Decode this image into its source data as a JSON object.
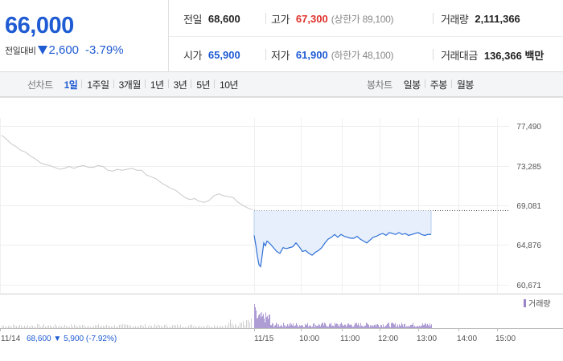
{
  "summary": {
    "price": "66,000",
    "change_label": "전일대비",
    "change_value": "2,600",
    "change_pct": "-3.79%",
    "prev_close_label": "전일",
    "prev_close": "68,600",
    "open_label": "시가",
    "open": "65,900",
    "high_label": "고가",
    "high": "67,300",
    "upper_limit": "(상한가 89,100)",
    "low_label": "저가",
    "low": "61,900",
    "lower_limit": "(하한가 48,100)",
    "volume_label": "거래량",
    "volume": "2,111,366",
    "amount_label": "거래대금",
    "amount": "136,366 백만"
  },
  "line_tabs": {
    "label": "선차트",
    "items": [
      "1일",
      "1주일",
      "3개월",
      "1년",
      "3년",
      "5년",
      "10년"
    ],
    "active": 0
  },
  "candle_tabs": {
    "label": "봉차트",
    "items": [
      "일봉",
      "주봉",
      "월봉"
    ]
  },
  "colors": {
    "accent": "#1f5bd3",
    "prev_day_line": "#c8c8c8",
    "today_line": "#2e6fd6",
    "fill": "#e6effb",
    "volume_prev": "#cfcfcf",
    "volume_today": "#9b83c9"
  },
  "chart_data": {
    "type": "line",
    "y_ticks": [
      "77,490",
      "73,285",
      "69,081",
      "64,876",
      "60,671"
    ],
    "ylim": [
      60671,
      77490
    ],
    "x_ticks": [
      "11/14",
      "11/15",
      "10:00",
      "11:00",
      "12:00",
      "13:00",
      "14:00",
      "15:00"
    ],
    "prev_day_ref": 68600,
    "legend": "거래량",
    "prev_day_info": {
      "date": "11/14",
      "close": "68,600",
      "change": "5,900",
      "pct": "(-7.92%)"
    },
    "series": [
      {
        "date": "11/14",
        "points": [
          [
            0,
            76500
          ],
          [
            6,
            76100
          ],
          [
            12,
            75600
          ],
          [
            18,
            75300
          ],
          [
            24,
            74900
          ],
          [
            30,
            74700
          ],
          [
            36,
            74300
          ],
          [
            42,
            74000
          ],
          [
            48,
            73600
          ],
          [
            54,
            73400
          ],
          [
            60,
            73300
          ],
          [
            66,
            73100
          ],
          [
            72,
            72900
          ],
          [
            78,
            73000
          ],
          [
            84,
            73200
          ],
          [
            90,
            73000
          ],
          [
            96,
            73200
          ],
          [
            102,
            73300
          ],
          [
            108,
            73100
          ],
          [
            114,
            73100
          ],
          [
            120,
            73300
          ],
          [
            126,
            73200
          ],
          [
            132,
            72800
          ],
          [
            138,
            72700
          ],
          [
            144,
            72900
          ],
          [
            150,
            72800
          ],
          [
            156,
            72900
          ],
          [
            162,
            73000
          ],
          [
            168,
            72800
          ],
          [
            174,
            72800
          ],
          [
            180,
            72300
          ],
          [
            186,
            72100
          ],
          [
            192,
            71900
          ],
          [
            198,
            71500
          ],
          [
            204,
            71200
          ],
          [
            210,
            70900
          ],
          [
            216,
            70700
          ],
          [
            222,
            70300
          ],
          [
            228,
            69900
          ],
          [
            234,
            69700
          ],
          [
            240,
            69800
          ],
          [
            246,
            69500
          ],
          [
            252,
            69400
          ],
          [
            258,
            69600
          ],
          [
            264,
            70100
          ],
          [
            270,
            70300
          ],
          [
            276,
            70100
          ],
          [
            282,
            70000
          ],
          [
            288,
            69900
          ],
          [
            294,
            69400
          ],
          [
            300,
            69100
          ],
          [
            306,
            68800
          ],
          [
            312,
            68600
          ]
        ]
      },
      {
        "date": "11/15",
        "points": [
          [
            0,
            65900
          ],
          [
            2,
            64900
          ],
          [
            4,
            63700
          ],
          [
            6,
            62800
          ],
          [
            8,
            62600
          ],
          [
            10,
            63800
          ],
          [
            12,
            65100
          ],
          [
            14,
            64800
          ],
          [
            16,
            65300
          ],
          [
            20,
            65000
          ],
          [
            24,
            64600
          ],
          [
            28,
            64200
          ],
          [
            32,
            64000
          ],
          [
            36,
            64600
          ],
          [
            40,
            64500
          ],
          [
            44,
            64600
          ],
          [
            48,
            64700
          ],
          [
            52,
            65100
          ],
          [
            56,
            64700
          ],
          [
            60,
            64200
          ],
          [
            64,
            64300
          ],
          [
            68,
            64000
          ],
          [
            72,
            63800
          ],
          [
            76,
            64100
          ],
          [
            80,
            64300
          ],
          [
            84,
            64600
          ],
          [
            88,
            65100
          ],
          [
            92,
            65500
          ],
          [
            96,
            65700
          ],
          [
            100,
            66000
          ],
          [
            104,
            65700
          ],
          [
            108,
            66000
          ],
          [
            112,
            65800
          ],
          [
            116,
            65700
          ],
          [
            120,
            65600
          ],
          [
            124,
            65600
          ],
          [
            128,
            65800
          ],
          [
            132,
            65500
          ],
          [
            136,
            65300
          ],
          [
            140,
            65100
          ],
          [
            144,
            65400
          ],
          [
            148,
            65700
          ],
          [
            152,
            65800
          ],
          [
            156,
            66000
          ],
          [
            160,
            66100
          ],
          [
            164,
            65900
          ],
          [
            168,
            66200
          ],
          [
            172,
            66100
          ],
          [
            176,
            66000
          ],
          [
            180,
            66200
          ],
          [
            184,
            66000
          ],
          [
            188,
            66100
          ],
          [
            192,
            65900
          ],
          [
            196,
            66000
          ],
          [
            200,
            66100
          ],
          [
            204,
            66200
          ],
          [
            208,
            66000
          ],
          [
            212,
            65900
          ],
          [
            216,
            66000
          ],
          [
            220,
            66000
          ]
        ]
      }
    ]
  }
}
